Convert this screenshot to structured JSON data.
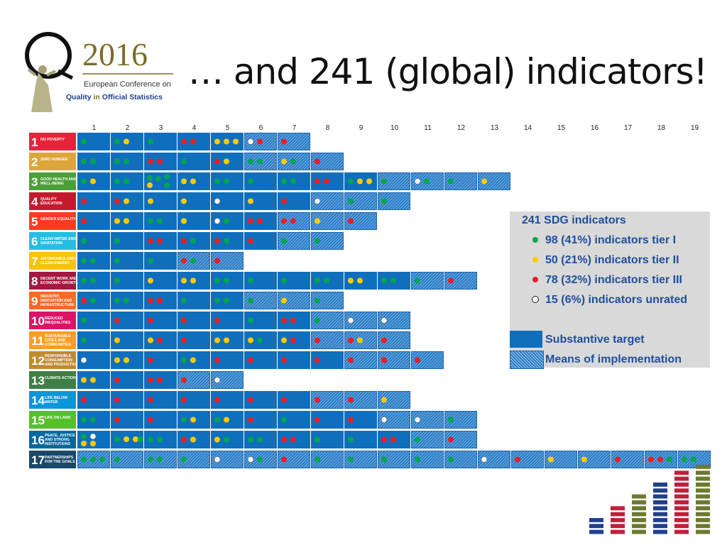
{
  "title": "… and 241 (global) indicators!",
  "logo": {
    "year": "2016",
    "line1": "European Conference on",
    "line2_a": "Quality",
    "line2_b": "in",
    "line2_c": "Official Statistics"
  },
  "colors": {
    "tier1": "#00a650",
    "tier2": "#ffcb05",
    "tier3": "#ed1c24",
    "unrated": "#ffffff",
    "substantive": "#0f6fbd",
    "hatch_light": "#9fc6ea",
    "hatch_dark": "#2a7cc6",
    "legend_text": "#1f4e9b"
  },
  "target_numbers": [
    "1",
    "2",
    "3",
    "4",
    "5",
    "6",
    "7",
    "8",
    "9",
    "10",
    "11",
    "12",
    "13",
    "14",
    "15",
    "16",
    "17",
    "18",
    "19"
  ],
  "goals": [
    {
      "num": "1",
      "label": "NO POVERTY",
      "color": "#e5243b",
      "cells": [
        {
          "type": "S",
          "dots": "g"
        },
        {
          "type": "S",
          "dots": "gy"
        },
        {
          "type": "S",
          "dots": "g"
        },
        {
          "type": "S",
          "dots": "rr"
        },
        {
          "type": "S",
          "dots": "yyy"
        },
        {
          "type": "M",
          "dots": "wr"
        },
        {
          "type": "M",
          "dots": "r"
        }
      ]
    },
    {
      "num": "2",
      "label": "ZERO HUNGER",
      "color": "#dda63a",
      "cells": [
        {
          "type": "S",
          "dots": "gg"
        },
        {
          "type": "S",
          "dots": "gg"
        },
        {
          "type": "S",
          "dots": "rr"
        },
        {
          "type": "S",
          "dots": "g"
        },
        {
          "type": "S",
          "dots": "ry"
        },
        {
          "type": "M",
          "dots": "gg"
        },
        {
          "type": "M",
          "dots": "yg"
        },
        {
          "type": "M",
          "dots": "r"
        }
      ]
    },
    {
      "num": "3",
      "label": "GOOD HEALTH AND WELL-BEING",
      "color": "#4c9f38",
      "cells": [
        {
          "type": "S",
          "dots": "gy"
        },
        {
          "type": "S",
          "dots": "gg"
        },
        {
          "type": "S",
          "dots": "gggyg"
        },
        {
          "type": "S",
          "dots": "yy"
        },
        {
          "type": "S",
          "dots": "gg"
        },
        {
          "type": "S",
          "dots": "g"
        },
        {
          "type": "S",
          "dots": "gg"
        },
        {
          "type": "S",
          "dots": "rr"
        },
        {
          "type": "S",
          "dots": "gyy"
        },
        {
          "type": "M",
          "dots": "g"
        },
        {
          "type": "M",
          "dots": "wg"
        },
        {
          "type": "M",
          "dots": "g"
        },
        {
          "type": "M",
          "dots": "y"
        }
      ]
    },
    {
      "num": "4",
      "label": "QUALITY EDUCATION",
      "color": "#c5192d",
      "cells": [
        {
          "type": "S",
          "dots": "r"
        },
        {
          "type": "S",
          "dots": "ry"
        },
        {
          "type": "S",
          "dots": "y"
        },
        {
          "type": "S",
          "dots": "y"
        },
        {
          "type": "S",
          "dots": "w"
        },
        {
          "type": "S",
          "dots": "y"
        },
        {
          "type": "S",
          "dots": "r"
        },
        {
          "type": "M",
          "dots": "w"
        },
        {
          "type": "M",
          "dots": "g"
        },
        {
          "type": "M",
          "dots": "g"
        }
      ]
    },
    {
      "num": "5",
      "label": "GENDER EQUALITY",
      "color": "#ff3a21",
      "cells": [
        {
          "type": "S",
          "dots": "r"
        },
        {
          "type": "S",
          "dots": "yy"
        },
        {
          "type": "S",
          "dots": "gg"
        },
        {
          "type": "S",
          "dots": "y"
        },
        {
          "type": "S",
          "dots": "wg"
        },
        {
          "type": "S",
          "dots": "rr"
        },
        {
          "type": "M",
          "dots": "rr"
        },
        {
          "type": "M",
          "dots": "y"
        },
        {
          "type": "M",
          "dots": "r"
        }
      ]
    },
    {
      "num": "6",
      "label": "CLEAN WATER AND SANITATION",
      "color": "#26bde2",
      "cells": [
        {
          "type": "S",
          "dots": "g"
        },
        {
          "type": "S",
          "dots": "g"
        },
        {
          "type": "S",
          "dots": "rr"
        },
        {
          "type": "S",
          "dots": "rg"
        },
        {
          "type": "S",
          "dots": "rg"
        },
        {
          "type": "S",
          "dots": "r"
        },
        {
          "type": "M",
          "dots": "g"
        },
        {
          "type": "M",
          "dots": "g"
        }
      ]
    },
    {
      "num": "7",
      "label": "AFFORDABLE AND CLEAN ENERGY",
      "color": "#fcc30b",
      "cells": [
        {
          "type": "S",
          "dots": "gg"
        },
        {
          "type": "S",
          "dots": "g"
        },
        {
          "type": "S",
          "dots": "g"
        },
        {
          "type": "M",
          "dots": "rg"
        },
        {
          "type": "M",
          "dots": "r"
        }
      ]
    },
    {
      "num": "8",
      "label": "DECENT WORK AND ECONOMIC GROWTH",
      "color": "#a21942",
      "cells": [
        {
          "type": "S",
          "dots": "gg"
        },
        {
          "type": "S",
          "dots": "g"
        },
        {
          "type": "S",
          "dots": "y"
        },
        {
          "type": "S",
          "dots": "yy"
        },
        {
          "type": "S",
          "dots": "gg"
        },
        {
          "type": "S",
          "dots": "g"
        },
        {
          "type": "S",
          "dots": "g"
        },
        {
          "type": "S",
          "dots": "gg"
        },
        {
          "type": "S",
          "dots": "yy"
        },
        {
          "type": "S",
          "dots": "gg"
        },
        {
          "type": "M",
          "dots": "g"
        },
        {
          "type": "M",
          "dots": "r"
        }
      ]
    },
    {
      "num": "9",
      "label": "INDUSTRY, INNOVATION AND INFRASTRUCTURE",
      "color": "#fd6925",
      "cells": [
        {
          "type": "S",
          "dots": "rg"
        },
        {
          "type": "S",
          "dots": "gg"
        },
        {
          "type": "S",
          "dots": "rr"
        },
        {
          "type": "S",
          "dots": "g"
        },
        {
          "type": "S",
          "dots": "gg"
        },
        {
          "type": "M",
          "dots": "g"
        },
        {
          "type": "M",
          "dots": "y"
        },
        {
          "type": "M",
          "dots": "g"
        }
      ]
    },
    {
      "num": "10",
      "label": "REDUCED INEQUALITIES",
      "color": "#dd1367",
      "cells": [
        {
          "type": "S",
          "dots": "g"
        },
        {
          "type": "S",
          "dots": "r"
        },
        {
          "type": "S",
          "dots": "r"
        },
        {
          "type": "S",
          "dots": "r"
        },
        {
          "type": "S",
          "dots": "r"
        },
        {
          "type": "S",
          "dots": "g"
        },
        {
          "type": "S",
          "dots": "rr"
        },
        {
          "type": "M",
          "dots": "g"
        },
        {
          "type": "M",
          "dots": "w"
        },
        {
          "type": "M",
          "dots": "w"
        }
      ]
    },
    {
      "num": "11",
      "label": "SUSTAINABLE CITIES AND COMMUNITIES",
      "color": "#fd9d24",
      "cells": [
        {
          "type": "S",
          "dots": "g"
        },
        {
          "type": "S",
          "dots": "y"
        },
        {
          "type": "S",
          "dots": "yr"
        },
        {
          "type": "S",
          "dots": "r"
        },
        {
          "type": "S",
          "dots": "yy"
        },
        {
          "type": "S",
          "dots": "yg"
        },
        {
          "type": "S",
          "dots": "yr"
        },
        {
          "type": "M",
          "dots": "r"
        },
        {
          "type": "M",
          "dots": "ry"
        },
        {
          "type": "M",
          "dots": "r"
        }
      ]
    },
    {
      "num": "12",
      "label": "RESPONSIBLE CONSUMPTION AND PRODUCTION",
      "color": "#bf8b2e",
      "cells": [
        {
          "type": "S",
          "dots": "w"
        },
        {
          "type": "S",
          "dots": "yy"
        },
        {
          "type": "S",
          "dots": "r"
        },
        {
          "type": "S",
          "dots": "gy"
        },
        {
          "type": "S",
          "dots": "r"
        },
        {
          "type": "S",
          "dots": "r"
        },
        {
          "type": "S",
          "dots": "r"
        },
        {
          "type": "S",
          "dots": "r"
        },
        {
          "type": "M",
          "dots": "r"
        },
        {
          "type": "M",
          "dots": "r"
        },
        {
          "type": "M",
          "dots": "r"
        }
      ]
    },
    {
      "num": "13",
      "label": "CLIMATE ACTION",
      "color": "#3f7e44",
      "cells": [
        {
          "type": "S",
          "dots": "yy"
        },
        {
          "type": "S",
          "dots": "r"
        },
        {
          "type": "S",
          "dots": "rr"
        },
        {
          "type": "M",
          "dots": "r"
        },
        {
          "type": "M",
          "dots": "w"
        }
      ]
    },
    {
      "num": "14",
      "label": "LIFE BELOW WATER",
      "color": "#0a97d9",
      "cells": [
        {
          "type": "S",
          "dots": "r"
        },
        {
          "type": "S",
          "dots": "r"
        },
        {
          "type": "S",
          "dots": "r"
        },
        {
          "type": "S",
          "dots": "r"
        },
        {
          "type": "S",
          "dots": "r"
        },
        {
          "type": "S",
          "dots": "r"
        },
        {
          "type": "S",
          "dots": "r"
        },
        {
          "type": "M",
          "dots": "r"
        },
        {
          "type": "M",
          "dots": "r"
        },
        {
          "type": "M",
          "dots": "y"
        }
      ]
    },
    {
      "num": "15",
      "label": "LIFE ON LAND",
      "color": "#56c02b",
      "cells": [
        {
          "type": "S",
          "dots": "gg"
        },
        {
          "type": "S",
          "dots": "r"
        },
        {
          "type": "S",
          "dots": "r"
        },
        {
          "type": "S",
          "dots": "gy"
        },
        {
          "type": "S",
          "dots": "gy"
        },
        {
          "type": "S",
          "dots": "r"
        },
        {
          "type": "S",
          "dots": "g"
        },
        {
          "type": "S",
          "dots": "r"
        },
        {
          "type": "S",
          "dots": "r"
        },
        {
          "type": "M",
          "dots": "w"
        },
        {
          "type": "M",
          "dots": "w"
        },
        {
          "type": "M",
          "dots": "g"
        }
      ]
    },
    {
      "num": "16",
      "label": "PEACE, JUSTICE AND STRONG INSTITUTIONS",
      "color": "#00689d",
      "cells": [
        {
          "type": "S",
          "dots": "gwyy"
        },
        {
          "type": "S",
          "dots": "gyyg"
        },
        {
          "type": "S",
          "dots": "gg"
        },
        {
          "type": "S",
          "dots": "ry"
        },
        {
          "type": "S",
          "dots": "yg"
        },
        {
          "type": "S",
          "dots": "gg"
        },
        {
          "type": "S",
          "dots": "rr"
        },
        {
          "type": "S",
          "dots": "g"
        },
        {
          "type": "S",
          "dots": "g"
        },
        {
          "type": "S",
          "dots": "rr"
        },
        {
          "type": "M",
          "dots": "g"
        },
        {
          "type": "M",
          "dots": "r"
        }
      ]
    },
    {
      "num": "17",
      "label": "PARTNERSHIPS FOR THE GOALS",
      "color": "#19486a",
      "cells": [
        {
          "type": "M",
          "dots": "ggg"
        },
        {
          "type": "M",
          "dots": "g"
        },
        {
          "type": "M",
          "dots": "gg"
        },
        {
          "type": "M",
          "dots": "g"
        },
        {
          "type": "M",
          "dots": "w"
        },
        {
          "type": "M",
          "dots": "wg"
        },
        {
          "type": "M",
          "dots": "r"
        },
        {
          "type": "M",
          "dots": "g"
        },
        {
          "type": "M",
          "dots": "g"
        },
        {
          "type": "M",
          "dots": "g"
        },
        {
          "type": "M",
          "dots": "g"
        },
        {
          "type": "M",
          "dots": "g"
        },
        {
          "type": "M",
          "dots": "w"
        },
        {
          "type": "M",
          "dots": "r"
        },
        {
          "type": "M",
          "dots": "y"
        },
        {
          "type": "M",
          "dots": "y"
        },
        {
          "type": "M",
          "dots": "r"
        },
        {
          "type": "M",
          "dots": "rrg"
        },
        {
          "type": "M",
          "dots": "gg"
        }
      ]
    }
  ],
  "legend": {
    "total_number": "241",
    "total_label": "SDG indicators",
    "tier1": "98 (41%) indicators tier I",
    "tier2": "50 (21%) indicators tier II",
    "tier3": "78 (32%) indicators tier III",
    "unrated": "15 (6%) indicators unrated",
    "substantive": "Substantive target",
    "means": "Means of implementation"
  },
  "bars": [
    {
      "value": 3,
      "color": "#1f3f8f"
    },
    {
      "value": 5,
      "color": "#c0203a"
    },
    {
      "value": 7,
      "color": "#6d7a2f"
    },
    {
      "value": 9,
      "color": "#1f3f8f"
    },
    {
      "value": 11,
      "color": "#c0203a"
    },
    {
      "value": 12,
      "color": "#6d7a2f"
    }
  ]
}
